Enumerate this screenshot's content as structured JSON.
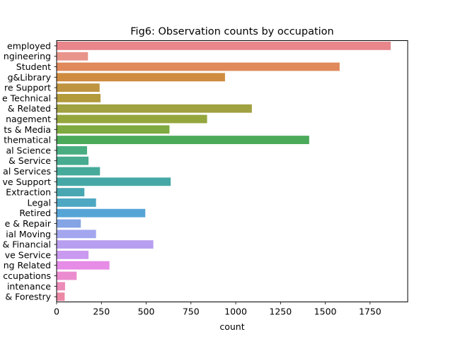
{
  "chart_data": {
    "type": "bar",
    "orientation": "horizontal",
    "title": "Fig6: Observation counts by occupation",
    "xlabel": "count",
    "ylabel": "",
    "xlim": [
      0,
      1960
    ],
    "xticks": [
      0,
      250,
      500,
      750,
      1000,
      1250,
      1500,
      1750
    ],
    "grid": false,
    "legend": "none",
    "categories": [
      "employed",
      "ngineering",
      "Student",
      "g&Library",
      "re Support",
      "e Technical",
      "& Related",
      "nagement",
      "ts & Media",
      "thematical",
      "al Science",
      "& Service",
      "al Services",
      "ve Support",
      "Extraction",
      "Legal",
      "Retired",
      "e & Repair",
      "ial Moving",
      "& Financial",
      "ve Service",
      "ng Related",
      "ccupations",
      "intenance",
      "& Forestry"
    ],
    "values": [
      1865,
      175,
      1580,
      940,
      240,
      245,
      1090,
      840,
      630,
      1410,
      170,
      178,
      242,
      637,
      155,
      220,
      495,
      135,
      220,
      540,
      178,
      295,
      112,
      47,
      45
    ],
    "colors": [
      "#e8868b",
      "#e8948b",
      "#e0895a",
      "#cf8b3f",
      "#bf9440",
      "#b39b3c",
      "#a0a140",
      "#95a63d",
      "#7eaa3f",
      "#4ba95a",
      "#48ad81",
      "#47ab8f",
      "#46aa9b",
      "#46a8a6",
      "#49a7b1",
      "#4ea7c3",
      "#55a4d6",
      "#84a5e5",
      "#a3a6ef",
      "#b89ef0",
      "#ca9af0",
      "#e68be6",
      "#ec8cd0",
      "#ec8ab8",
      "#ec88a6"
    ]
  }
}
